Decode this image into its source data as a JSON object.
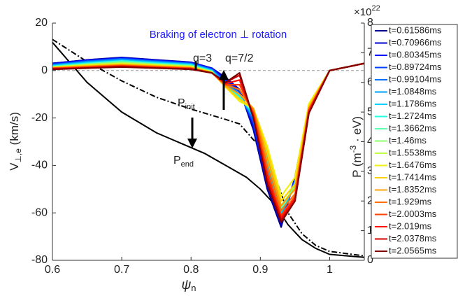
{
  "chart_data": {
    "type": "line",
    "title": "Braking of electron ⊥ rotation",
    "x_label": {
      "main": "ψ",
      "sub": "n"
    },
    "y_label": {
      "main": "V",
      "sub": "⊥,e",
      "rest": " (km/s)"
    },
    "y2_label": {
      "main": "P (m",
      "sup": "-3",
      "rest": " · eV)"
    },
    "y2_multiplier": {
      "main": "×10",
      "sup": "22"
    },
    "annotations": {
      "q3": "q=3",
      "q72": "q=7/2",
      "p_init": {
        "main": "P",
        "sub": "init"
      },
      "p_end": {
        "main": "P",
        "sub": "end"
      }
    },
    "x": [
      0.6,
      0.65,
      0.7,
      0.75,
      0.8,
      0.83,
      0.85,
      0.87,
      0.89,
      0.91,
      0.93,
      0.95,
      0.97,
      1.0,
      1.05
    ],
    "xlim": [
      0.6,
      1.05
    ],
    "xticks": [
      0.6,
      0.7,
      0.8,
      0.9,
      1
    ],
    "ylim": [
      -80,
      20
    ],
    "yticks": [
      -80,
      -60,
      -40,
      -20,
      0,
      20
    ],
    "y2lim": [
      0,
      8
    ],
    "y2ticks": [
      0,
      1,
      2,
      3,
      4,
      5,
      6,
      7,
      8
    ],
    "reference_line": 0,
    "series": [
      {
        "name": "t=0.61586ms",
        "color": "#00008f",
        "values": [
          3,
          4.5,
          5.5,
          4.5,
          3.5,
          1,
          -3,
          -8,
          -25,
          -50,
          -66,
          -45,
          -15,
          0,
          3
        ]
      },
      {
        "name": "t=0.70966ms",
        "color": "#0000cf",
        "values": [
          3,
          4.4,
          5.4,
          4.4,
          3.4,
          1,
          -3.5,
          -8,
          -24,
          -49,
          -65,
          -45,
          -15,
          0,
          3
        ]
      },
      {
        "name": "t=0.80345ms",
        "color": "#0010ff",
        "values": [
          2.8,
          4.2,
          5.2,
          4.2,
          3.3,
          0.8,
          -4,
          -9,
          -23,
          -48,
          -64,
          -46,
          -15,
          0,
          3
        ]
      },
      {
        "name": "t=0.89724ms",
        "color": "#0040ff",
        "values": [
          2.6,
          4,
          5,
          4,
          3.1,
          0.6,
          -4.5,
          -9,
          -22,
          -46,
          -63,
          -46,
          -15,
          0,
          3
        ]
      },
      {
        "name": "t=0.99104ms",
        "color": "#0070ff",
        "values": [
          2.4,
          3.8,
          4.8,
          3.8,
          2.9,
          0.4,
          -5,
          -10,
          -21,
          -44,
          -62,
          -47,
          -15,
          0,
          3
        ]
      },
      {
        "name": "t=1.0848ms",
        "color": "#00a0ff",
        "values": [
          2.2,
          3.6,
          4.5,
          3.6,
          2.7,
          0.2,
          -5.5,
          -10,
          -20,
          -42,
          -61,
          -47,
          -15,
          0,
          3
        ]
      },
      {
        "name": "t=1.1786ms",
        "color": "#00d0ff",
        "values": [
          2,
          3.3,
          4.2,
          3.3,
          2.5,
          0,
          -6,
          -11,
          -19,
          -40,
          -60,
          -48,
          -15,
          0,
          3
        ]
      },
      {
        "name": "t=1.2724ms",
        "color": "#20ffe8",
        "values": [
          1.8,
          3,
          4,
          3,
          2.3,
          -0.2,
          -6.5,
          -11,
          -18,
          -38,
          -59,
          -48,
          -15,
          0,
          3
        ]
      },
      {
        "name": "t=1.3662ms",
        "color": "#60ffb0",
        "values": [
          1.6,
          2.8,
          3.7,
          2.8,
          2.1,
          -0.4,
          -7,
          -12,
          -17,
          -36,
          -58,
          -49,
          -15,
          0,
          3
        ]
      },
      {
        "name": "t=1.46ms",
        "color": "#90ff70",
        "values": [
          1.5,
          2.6,
          3.4,
          2.6,
          1.9,
          -0.5,
          -7,
          -12,
          -16,
          -34,
          -57,
          -49,
          -15,
          0,
          3
        ]
      },
      {
        "name": "t=1.5538ms",
        "color": "#c0ff40",
        "values": [
          1.4,
          2.4,
          3.1,
          2.4,
          1.7,
          -0.6,
          -7,
          -12,
          -16,
          -33,
          -55,
          -48,
          -15,
          0,
          3
        ]
      },
      {
        "name": "t=1.6476ms",
        "color": "#f0f010",
        "values": [
          1.3,
          2.2,
          2.8,
          2.2,
          1.5,
          -0.7,
          -7,
          -13,
          -16,
          -32,
          -53,
          -45,
          -14,
          0,
          3
        ]
      },
      {
        "name": "t=1.7414ms",
        "color": "#ffd000",
        "values": [
          1.2,
          2,
          2.6,
          2,
          1.3,
          -0.8,
          -7,
          -12,
          -16,
          -34,
          -55,
          -48,
          -15,
          0,
          3
        ]
      },
      {
        "name": "t=1.8352ms",
        "color": "#ffa000",
        "values": [
          1.1,
          1.8,
          2.4,
          1.8,
          1.2,
          -0.9,
          -6.5,
          -10,
          -16,
          -37,
          -57,
          -50,
          -16,
          0,
          3
        ]
      },
      {
        "name": "t=1.929ms",
        "color": "#ff7000",
        "values": [
          1,
          1.6,
          2.2,
          1.6,
          1,
          -1,
          -6,
          -8,
          -17,
          -40,
          -59,
          -52,
          -16,
          0,
          3
        ]
      },
      {
        "name": "t=2.0003ms",
        "color": "#ff4000",
        "values": [
          0.9,
          1.4,
          2,
          1.4,
          0.9,
          -1,
          -6,
          -6,
          -18,
          -43,
          -61,
          -53,
          -17,
          0,
          3
        ]
      },
      {
        "name": "t=2.019ms",
        "color": "#ff1000",
        "values": [
          0.8,
          1.2,
          1.8,
          1.2,
          0.7,
          -1,
          -5.5,
          -4,
          -19,
          -45,
          -62,
          -54,
          -17,
          0,
          3
        ]
      },
      {
        "name": "t=2.0378ms",
        "color": "#d00000",
        "values": [
          0.6,
          1.1,
          1.6,
          1.1,
          0.6,
          -1,
          -5,
          -2,
          -20,
          -47,
          -63,
          -55,
          -18,
          0,
          3
        ]
      },
      {
        "name": "t=2.0565ms",
        "color": "#800000",
        "values": [
          0.5,
          1,
          1.5,
          1,
          0.5,
          -1,
          -5,
          -1,
          -20,
          -48,
          -64,
          -55,
          -18,
          0,
          3
        ]
      }
    ],
    "pressure": [
      {
        "dash": "dashdot",
        "color": "#000000",
        "axis": "y2",
        "x": [
          0.6,
          0.65,
          0.7,
          0.75,
          0.8,
          0.85,
          0.87,
          0.9,
          0.92,
          0.94,
          0.96,
          0.98,
          1.0,
          1.05
        ],
        "values": [
          7.45,
          6.7,
          6.05,
          5.5,
          5.1,
          4.75,
          4.6,
          3.8,
          2.9,
          1.6,
          0.9,
          0.5,
          0.3,
          0.15
        ]
      },
      {
        "dash": "solid",
        "color": "#000000",
        "axis": "y2",
        "x": [
          0.6,
          0.65,
          0.7,
          0.75,
          0.8,
          0.82,
          0.85,
          0.88,
          0.9,
          0.92,
          0.94,
          0.96,
          0.98,
          1.0,
          1.05
        ],
        "values": [
          7.35,
          6,
          5,
          4.3,
          3.8,
          3.6,
          3.2,
          2.8,
          2.4,
          1.9,
          1.2,
          0.7,
          0.4,
          0.2,
          0.1
        ]
      }
    ]
  }
}
